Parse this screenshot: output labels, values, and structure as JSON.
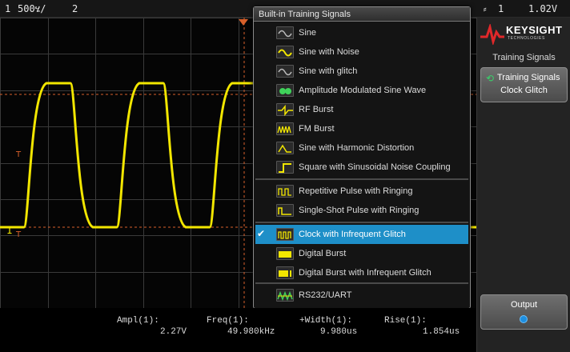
{
  "status_bar": {
    "channel": "1",
    "scale": "500ሄ/",
    "channel2": "2",
    "trigger_icon": "trigger-edge-icon",
    "trigger_channel": "1",
    "trigger_level": "1.02V"
  },
  "menu": {
    "title": "Built-in Training Signals",
    "items": [
      {
        "label": "Sine",
        "icon": "sine-icon",
        "selected": false
      },
      {
        "label": "Sine with Noise",
        "icon": "sine-noise-icon",
        "selected": false
      },
      {
        "label": "Sine with glitch",
        "icon": "sine-glitch-icon",
        "selected": false
      },
      {
        "label": "Amplitude Modulated Sine Wave",
        "icon": "am-sine-icon",
        "selected": false
      },
      {
        "label": "RF Burst",
        "icon": "rf-burst-icon",
        "selected": false
      },
      {
        "label": "FM Burst",
        "icon": "fm-burst-icon",
        "selected": false
      },
      {
        "label": "Sine with Harmonic Distortion",
        "icon": "harmonic-sine-icon",
        "selected": false
      },
      {
        "label": "Square with Sinusoidal Noise Coupling",
        "icon": "square-noise-icon",
        "selected": false
      },
      {
        "label": "Repetitive Pulse with Ringing",
        "icon": "rep-pulse-icon",
        "selected": false
      },
      {
        "label": "Single-Shot Pulse with Ringing",
        "icon": "single-pulse-icon",
        "selected": false
      },
      {
        "label": "Clock with Infrequent Glitch",
        "icon": "clock-glitch-icon",
        "selected": true
      },
      {
        "label": "Digital Burst",
        "icon": "digital-burst-icon",
        "selected": false
      },
      {
        "label": "Digital Burst with Infrequent Glitch",
        "icon": "digital-glitch-icon",
        "selected": false
      },
      {
        "label": "RS232/UART",
        "icon": "uart-icon",
        "selected": false
      }
    ],
    "check_mark": "✔"
  },
  "side_panel": {
    "brand": "KEYSIGHT",
    "brand_sub": "TECHNOLOGIES",
    "title": "Training Signals",
    "softkey1_line1": "Training Signals",
    "softkey1_line2": "Clock Glitch",
    "softkey6_label": "Output"
  },
  "measurements": {
    "ampl_label": "Ampl(1):",
    "ampl_value": "2.27V",
    "freq_label": "Freq(1):",
    "freq_value": "49.980kHz",
    "width_label": "+Width(1):",
    "width_value": "9.980us",
    "rise_label": "Rise(1):",
    "rise_value": "1.854us"
  },
  "colors": {
    "trace": "#f2e600",
    "selected": "#1e8fc8",
    "cursor": "#d8602a",
    "brand_red": "#e0282a"
  }
}
